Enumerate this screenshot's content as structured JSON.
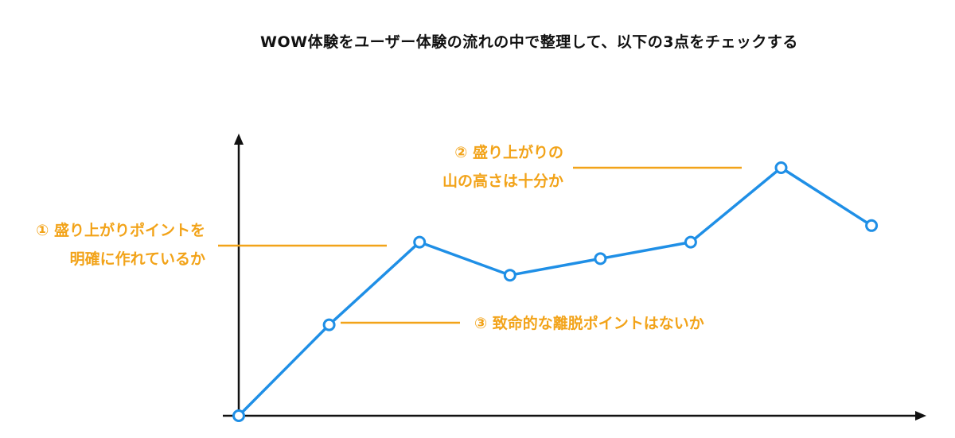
{
  "title": "WOW体験をユーザー体験の流れの中で整理して、以下の3点をチェックする",
  "colors": {
    "line": "#1f8fe6",
    "annotation": "#f2a319",
    "axis": "#111111"
  },
  "annotations": [
    {
      "id": "ann1",
      "lines": [
        "① 盛り上がりポイントを",
        "明確に作れているか"
      ]
    },
    {
      "id": "ann2",
      "lines": [
        "② 盛り上がりの",
        "山の高さは十分か"
      ]
    },
    {
      "id": "ann3",
      "lines": [
        "③ 致命的な離脱ポイントはないか"
      ]
    }
  ],
  "chart_data": {
    "type": "line",
    "x": [
      0,
      1,
      2,
      3,
      4,
      5,
      6,
      7
    ],
    "values": [
      0,
      1.1,
      2.1,
      1.7,
      1.9,
      2.1,
      3.0,
      2.3
    ],
    "xlim": [
      0,
      7.8
    ],
    "ylim": [
      0,
      3.0
    ],
    "xlabel": "",
    "ylabel": "",
    "ticks": false,
    "grid": false,
    "markers": "open-circle"
  }
}
